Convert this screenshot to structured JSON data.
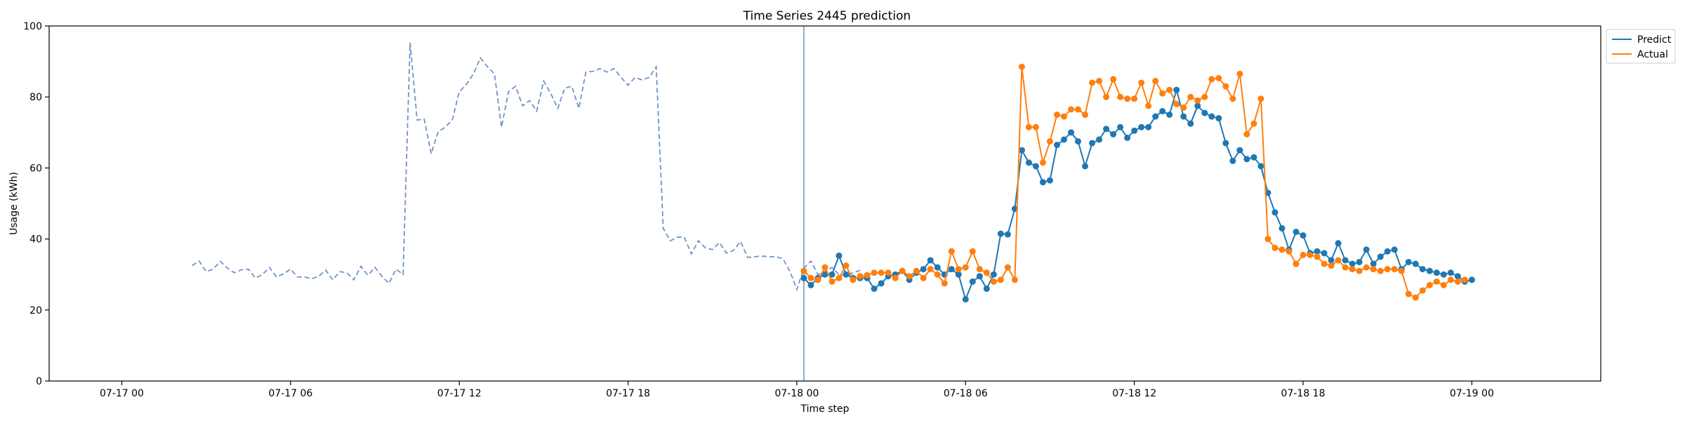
{
  "chart_data": {
    "type": "line",
    "title": "Time Series 2445 prediction",
    "xlabel": "Time step",
    "ylabel": "Usage (kWh)",
    "ylim": [
      0,
      100
    ],
    "xlim": [
      "07-16 21:25",
      "07-19 04:35"
    ],
    "yticks": [
      0,
      20,
      40,
      60,
      80,
      100
    ],
    "xticks": [
      {
        "t": "07-17 00:00",
        "label": "07-17 00"
      },
      {
        "t": "07-17 06:00",
        "label": "07-17 06"
      },
      {
        "t": "07-17 12:00",
        "label": "07-17 12"
      },
      {
        "t": "07-17 18:00",
        "label": "07-17 18"
      },
      {
        "t": "07-18 00:00",
        "label": "07-18 00"
      },
      {
        "t": "07-18 06:00",
        "label": "07-18 06"
      },
      {
        "t": "07-18 12:00",
        "label": "07-18 12"
      },
      {
        "t": "07-18 18:00",
        "label": "07-18 18"
      },
      {
        "t": "07-19 00:00",
        "label": "07-19 00"
      }
    ],
    "grid": false,
    "legend_position": "top-right",
    "forecast_start": "07-18 00:15",
    "colors": {
      "history": "#7094c4",
      "predict": "#1f77b4",
      "actual": "#ff7f0e",
      "divider": "#7094c4"
    },
    "history": {
      "start": "07-17 02:30",
      "step_minutes": 15,
      "values": [
        32.5,
        33.8,
        30.8,
        31.5,
        33.7,
        31.8,
        30.5,
        31.3,
        31.5,
        29,
        30,
        32,
        29.3,
        30.2,
        31.5,
        29.3,
        29.3,
        28.8,
        29.5,
        31.2,
        28.5,
        30.8,
        30.5,
        28.5,
        32.3,
        29.8,
        32,
        29.5,
        27.5,
        31.5,
        30,
        95.3,
        73.5,
        73.8,
        64,
        70.2,
        71.5,
        73.5,
        81.5,
        83.5,
        86.5,
        91,
        88.5,
        86.5,
        71.5,
        81.5,
        83,
        77.5,
        79,
        76,
        84.5,
        81,
        76.8,
        82.5,
        83,
        76.8,
        87,
        87.2,
        88,
        87,
        88,
        85.5,
        83.3,
        85.5,
        84.8,
        85.5,
        88.5,
        43,
        39.5,
        40.5,
        40.5,
        35.8,
        39.5,
        37.5,
        37,
        39,
        36,
        36.8,
        39.3,
        34.8,
        35,
        35.2,
        35,
        35,
        34.5,
        31,
        25.8,
        31.8,
        33.8,
        30,
        30.8,
        32,
        30,
        29.5,
        30.5,
        31.2
      ]
    },
    "series": [
      {
        "name": "Predict",
        "start": "07-18 00:15",
        "step_minutes": 15,
        "values": [
          29,
          27,
          29,
          30,
          30,
          35.3,
          30,
          29,
          29,
          29,
          26,
          27.5,
          29.5,
          30,
          31,
          28.5,
          30.5,
          31.5,
          34,
          32,
          30,
          31.5,
          30,
          23,
          28,
          29.5,
          26,
          30,
          41.5,
          41.3,
          48.5,
          65,
          61.5,
          60.5,
          56,
          56.5,
          66.5,
          68,
          70,
          67.5,
          60.5,
          67,
          68,
          71,
          69.5,
          71.5,
          68.5,
          70.5,
          71.5,
          71.5,
          74.5,
          76,
          75,
          82,
          74.5,
          72.5,
          77.5,
          75.5,
          74.5,
          74,
          67,
          62,
          65,
          62.5,
          63,
          60.5,
          53,
          47.5,
          43,
          37,
          42,
          41,
          36,
          36.5,
          36,
          34,
          38.8,
          34,
          33,
          33.5,
          37,
          33,
          35,
          36.5,
          37,
          31.5,
          33.5,
          33,
          31.5,
          31,
          30.5,
          30,
          30.5,
          29.5,
          28,
          28.5
        ]
      },
      {
        "name": "Actual",
        "start": "07-18 00:15",
        "step_minutes": 15,
        "values": [
          31,
          29,
          28.5,
          32,
          28,
          29,
          32.5,
          28.5,
          29.5,
          29.8,
          30.5,
          30.5,
          30.5,
          29,
          31,
          29.5,
          31,
          29,
          31.5,
          30,
          27.5,
          36.5,
          31.5,
          32,
          36.5,
          31.5,
          30.5,
          28,
          28.5,
          32,
          28.5,
          88.5,
          71.5,
          71.5,
          61.5,
          67.5,
          75,
          74.5,
          76.5,
          76.5,
          75,
          84,
          84.5,
          80,
          85,
          80,
          79.5,
          79.5,
          84,
          77.5,
          84.5,
          81,
          82,
          78,
          77,
          80,
          79,
          80,
          85,
          85.3,
          83,
          79.5,
          86.5,
          69.5,
          72.5,
          79.5,
          40,
          37.5,
          37,
          36.5,
          33,
          35.5,
          35.5,
          35,
          33,
          32.5,
          34,
          32,
          31.5,
          31,
          32,
          31.5,
          31,
          31.5,
          31.5,
          31,
          24.5,
          23.5,
          25.5,
          27,
          28,
          27,
          28.5,
          28,
          28.5
        ]
      }
    ]
  }
}
